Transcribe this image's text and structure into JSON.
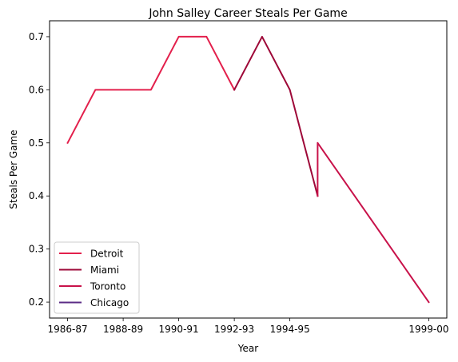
{
  "chart_data": {
    "type": "line",
    "title": "John Salley Career Steals Per Game",
    "xlabel": "Year",
    "ylabel": "Steals Per Game",
    "x_tick_labels": [
      "1986-87",
      "1988-89",
      "1990-91",
      "1992-93",
      "1994-95",
      "1999-00"
    ],
    "y_tick_labels": [
      "0.2",
      "0.3",
      "0.4",
      "0.5",
      "0.6",
      "0.7"
    ],
    "ylim": [
      0.17,
      0.73
    ],
    "grid": false,
    "legend_position": "lower-left",
    "series": [
      {
        "name": "Detroit",
        "color": "#e3204c",
        "points": [
          [
            "1986-87",
            0.5
          ],
          [
            "1987-88",
            0.6
          ],
          [
            "1989-90",
            0.6
          ],
          [
            "1990-91",
            0.7
          ],
          [
            "1991-92",
            0.7
          ],
          [
            "1992-93",
            0.6
          ]
        ]
      },
      {
        "name": "Miami",
        "color": "#9e0838",
        "points": [
          [
            "1992-93",
            0.6
          ],
          [
            "1993-94",
            0.7
          ],
          [
            "1994-95",
            0.6
          ],
          [
            "1995-96",
            0.4
          ]
        ]
      },
      {
        "name": "Toronto",
        "color": "#c8124a",
        "points": [
          [
            "1995-96",
            0.4
          ],
          [
            "1995-96",
            0.5
          ],
          [
            "1999-00",
            0.2
          ]
        ]
      },
      {
        "name": "Chicago",
        "color": "#5b2c86",
        "points": []
      }
    ]
  }
}
